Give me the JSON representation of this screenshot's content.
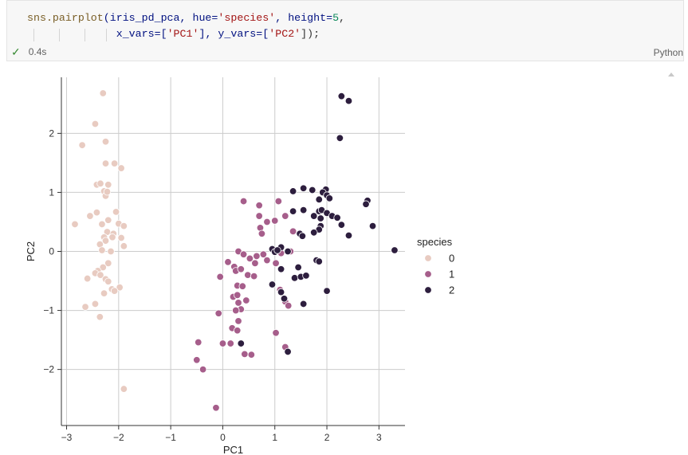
{
  "cell": {
    "code_line1": {
      "fn": "sns.pairplot",
      "open": "(iris_pd_pca, hue=",
      "s1": "'species'",
      "mid": ", height=",
      "n1": "5",
      "end": ","
    },
    "code_line2": {
      "a": "x_vars=[",
      "s1": "'PC1'",
      "b": "], y_vars=[",
      "s2": "'PC2'",
      "c": "]);"
    },
    "status_icon": "check-icon",
    "status_check": "✓",
    "exec_time": "0.4s",
    "language": "Python"
  },
  "chart_data": {
    "type": "scatter",
    "xlabel": "PC1",
    "ylabel": "PC2",
    "xlim": [
      -3.1,
      3.5
    ],
    "ylim": [
      -2.95,
      2.95
    ],
    "xticks": [
      -3,
      -2,
      -1,
      0,
      1,
      2,
      3
    ],
    "yticks": [
      -2,
      -1,
      0,
      1,
      2
    ],
    "xtick_labels": [
      "−3",
      "−2",
      "−1",
      "0",
      "1",
      "2",
      "3"
    ],
    "ytick_labels": [
      "−2",
      "−1",
      "0",
      "1",
      "2"
    ],
    "grid": true,
    "legend_title": "species",
    "legend_position": "right",
    "series": [
      {
        "name": "0",
        "color": "#e8cbc1",
        "points": [
          [
            -2.3,
            2.68
          ],
          [
            -2.45,
            2.16
          ],
          [
            -2.7,
            1.8
          ],
          [
            -2.25,
            1.86
          ],
          [
            -2.25,
            1.49
          ],
          [
            -2.08,
            1.49
          ],
          [
            -1.95,
            1.41
          ],
          [
            -2.42,
            1.13
          ],
          [
            -2.35,
            1.15
          ],
          [
            -2.2,
            1.13
          ],
          [
            -2.28,
            1.02
          ],
          [
            -2.25,
            0.94
          ],
          [
            -2.22,
            1.01
          ],
          [
            -2.05,
            0.67
          ],
          [
            -2.42,
            0.66
          ],
          [
            -2.55,
            0.6
          ],
          [
            -2.2,
            0.53
          ],
          [
            -2.32,
            0.46
          ],
          [
            -2.84,
            0.46
          ],
          [
            -2.0,
            0.47
          ],
          [
            -1.9,
            0.43
          ],
          [
            -2.22,
            0.33
          ],
          [
            -2.28,
            0.24
          ],
          [
            -2.1,
            0.3
          ],
          [
            -2.12,
            0.24
          ],
          [
            -1.95,
            0.23
          ],
          [
            -2.25,
            0.18
          ],
          [
            -2.36,
            0.12
          ],
          [
            -1.9,
            0.09
          ],
          [
            -2.32,
            0.02
          ],
          [
            -2.15,
            0.0
          ],
          [
            -2.2,
            -0.2
          ],
          [
            -2.3,
            -0.27
          ],
          [
            -2.4,
            -0.33
          ],
          [
            -2.45,
            -0.37
          ],
          [
            -2.35,
            -0.4
          ],
          [
            -2.6,
            -0.46
          ],
          [
            -2.25,
            -0.47
          ],
          [
            -2.2,
            -0.51
          ],
          [
            -1.98,
            -0.61
          ],
          [
            -2.13,
            -0.64
          ],
          [
            -2.08,
            -0.67
          ],
          [
            -2.28,
            -0.71
          ],
          [
            -2.45,
            -0.89
          ],
          [
            -2.64,
            -0.94
          ],
          [
            -2.36,
            -1.11
          ],
          [
            -1.9,
            -2.33
          ]
        ]
      },
      {
        "name": "1",
        "color": "#a65e8b",
        "points": [
          [
            0.4,
            0.85
          ],
          [
            0.7,
            0.78
          ],
          [
            1.07,
            0.85
          ],
          [
            0.7,
            0.6
          ],
          [
            0.85,
            0.5
          ],
          [
            1.0,
            0.52
          ],
          [
            1.2,
            0.6
          ],
          [
            0.72,
            0.4
          ],
          [
            0.75,
            0.3
          ],
          [
            1.35,
            0.34
          ],
          [
            0.3,
            0.0
          ],
          [
            0.4,
            -0.05
          ],
          [
            0.52,
            -0.12
          ],
          [
            0.65,
            -0.08
          ],
          [
            0.78,
            -0.05
          ],
          [
            0.62,
            -0.2
          ],
          [
            0.85,
            -0.15
          ],
          [
            1.12,
            -0.03
          ],
          [
            1.02,
            -0.2
          ],
          [
            1.3,
            0.0
          ],
          [
            0.1,
            -0.18
          ],
          [
            0.22,
            -0.26
          ],
          [
            0.25,
            -0.33
          ],
          [
            0.35,
            -0.3
          ],
          [
            0.48,
            -0.4
          ],
          [
            0.6,
            -0.42
          ],
          [
            0.28,
            -0.58
          ],
          [
            0.38,
            -0.59
          ],
          [
            -0.05,
            -0.43
          ],
          [
            0.2,
            -0.77
          ],
          [
            0.28,
            -0.74
          ],
          [
            0.3,
            -0.87
          ],
          [
            0.45,
            -0.83
          ],
          [
            1.1,
            -0.65
          ],
          [
            1.2,
            -0.85
          ],
          [
            1.26,
            -0.92
          ],
          [
            0.35,
            -0.98
          ],
          [
            0.25,
            -1.0
          ],
          [
            -0.08,
            -1.05
          ],
          [
            0.3,
            -1.18
          ],
          [
            0.18,
            -1.3
          ],
          [
            0.28,
            -1.34
          ],
          [
            1.02,
            -1.38
          ],
          [
            0.0,
            -1.56
          ],
          [
            0.15,
            -1.56
          ],
          [
            0.42,
            -1.74
          ],
          [
            0.55,
            -1.75
          ],
          [
            1.2,
            -1.62
          ],
          [
            -0.47,
            -1.54
          ],
          [
            -0.5,
            -1.84
          ],
          [
            -0.38,
            -2.0
          ],
          [
            -0.13,
            -2.65
          ]
        ]
      },
      {
        "name": "2",
        "color": "#2d1e3e",
        "points": [
          [
            2.28,
            2.63
          ],
          [
            2.42,
            2.55
          ],
          [
            2.25,
            1.92
          ],
          [
            1.55,
            1.07
          ],
          [
            1.72,
            1.04
          ],
          [
            1.98,
            1.05
          ],
          [
            1.92,
            1.0
          ],
          [
            2.0,
            0.95
          ],
          [
            2.05,
            0.9
          ],
          [
            1.85,
            0.88
          ],
          [
            2.78,
            0.86
          ],
          [
            2.75,
            0.8
          ],
          [
            1.35,
            1.02
          ],
          [
            1.55,
            0.7
          ],
          [
            1.35,
            0.68
          ],
          [
            1.85,
            0.68
          ],
          [
            1.9,
            0.7
          ],
          [
            2.0,
            0.65
          ],
          [
            2.1,
            0.6
          ],
          [
            2.2,
            0.57
          ],
          [
            1.88,
            0.56
          ],
          [
            1.75,
            0.6
          ],
          [
            2.28,
            0.45
          ],
          [
            2.88,
            0.43
          ],
          [
            1.88,
            0.43
          ],
          [
            1.85,
            0.37
          ],
          [
            1.75,
            0.32
          ],
          [
            1.48,
            0.3
          ],
          [
            1.53,
            0.26
          ],
          [
            2.42,
            0.27
          ],
          [
            1.12,
            0.07
          ],
          [
            0.95,
            0.04
          ],
          [
            1.0,
            -0.01
          ],
          [
            1.05,
            0.02
          ],
          [
            1.25,
            0.0
          ],
          [
            3.3,
            0.02
          ],
          [
            1.8,
            -0.15
          ],
          [
            1.85,
            -0.17
          ],
          [
            1.45,
            -0.27
          ],
          [
            1.12,
            -0.3
          ],
          [
            1.38,
            -0.45
          ],
          [
            1.5,
            -0.43
          ],
          [
            1.6,
            -0.41
          ],
          [
            0.95,
            -0.56
          ],
          [
            1.12,
            -0.69
          ],
          [
            1.18,
            -0.8
          ],
          [
            2.0,
            -0.67
          ],
          [
            1.55,
            -0.89
          ],
          [
            0.35,
            -1.56
          ],
          [
            1.25,
            -1.7
          ]
        ]
      }
    ]
  }
}
